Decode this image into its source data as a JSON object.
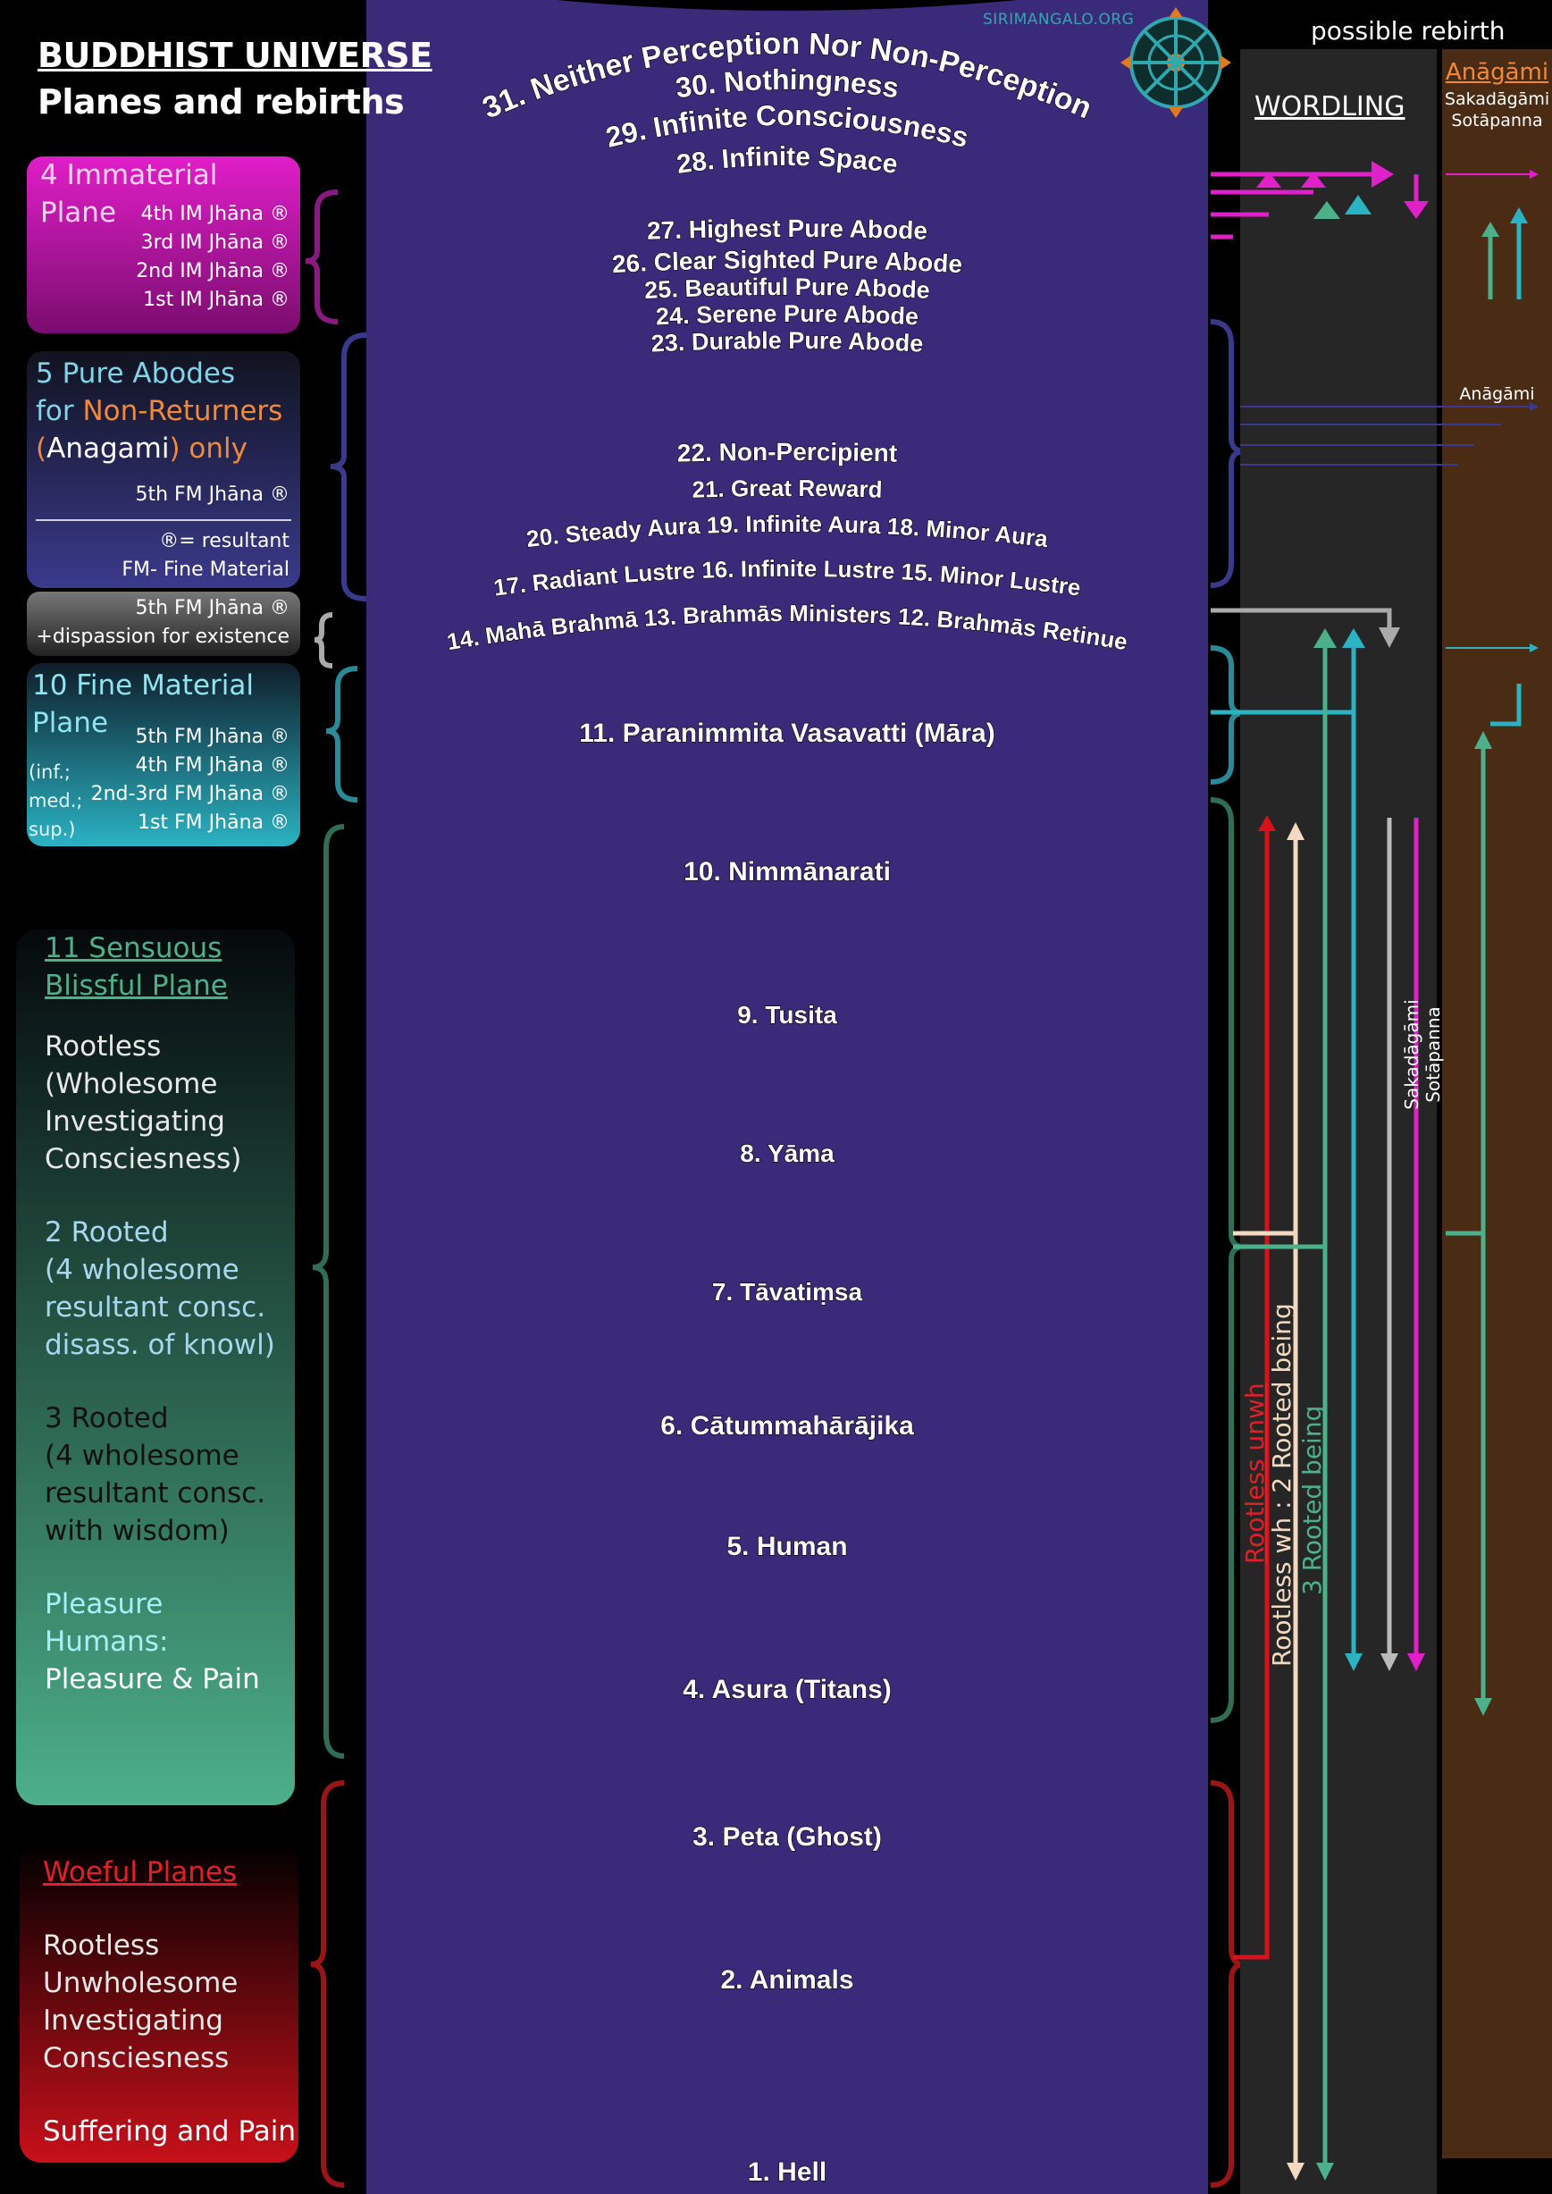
{
  "header": {
    "title": "BUDDHIST UNIVERSE",
    "subtitle": "Planes and rebirths",
    "site": "SIRIMANGALO.ORG"
  },
  "left_panels": {
    "immaterial": {
      "heading_line1": "4 Immaterial",
      "heading_line2": "Plane",
      "jhanas": [
        "4th IM Jhāna ®",
        "3rd IM Jhāna ®",
        "2nd IM Jhāna ®",
        "1st IM Jhāna ®"
      ]
    },
    "pure_abodes": {
      "line1": "5 Pure Abodes",
      "line2_a": "for ",
      "line2_b": "Non-Returners",
      "line3_a": "(",
      "line3_b": "Anagami",
      "line3_c": ") only",
      "jhana": "5th FM Jhāna ®",
      "note1": "®= resultant",
      "note2": "FM- Fine Material"
    },
    "non_percipient": {
      "line1": "5th FM Jhāna ®",
      "line2": "+dispassion for existence"
    },
    "fine_material": {
      "heading_line1": "10 Fine Material",
      "heading_line2": "Plane",
      "jhanas": [
        "5th FM Jhāna ®",
        "4th FM Jhāna ®",
        "2nd-3rd FM Jhāna ®",
        "1st FM Jhāna ®"
      ],
      "side_notes": [
        "(inf.;",
        "med.;",
        "sup.)"
      ]
    },
    "sensuous": {
      "heading_line1": "11 Sensuous",
      "heading_line2": "Blissful Plane",
      "block1": [
        "Rootless",
        "(Wholesome",
        "Investigating",
        "Consciesness)"
      ],
      "block2": [
        "2 Rooted",
        "(4 wholesome",
        "resultant consc.",
        "disass. of knowl)"
      ],
      "block3": [
        "3 Rooted",
        "(4 wholesome",
        "resultant consc.",
        "with wisdom)"
      ],
      "block4": [
        "Pleasure",
        "Humans:",
        "Pleasure & Pain"
      ]
    },
    "woeful": {
      "heading": "Woeful Planes",
      "block1": [
        "Rootless",
        "Unwholesome",
        "Investigating",
        "Consciesness"
      ],
      "block2": "Suffering and Pain"
    }
  },
  "planes": {
    "p31": "31. Neither Perception Nor Non-Perception",
    "p30": "30. Nothingness",
    "p29": "29. Infinite Consciousness",
    "p28": "28. Infinite Space",
    "p27": "27. Highest Pure Abode",
    "p26": "26. Clear Sighted Pure Abode",
    "p25": "25. Beautiful Pure Abode",
    "p24": "24. Serene Pure Abode",
    "p23": "23. Durable Pure Abode",
    "p22": "22. Non-Percipient",
    "p21": "21. Great Reward",
    "p20_18": "20. Steady Aura 19. Infinite Aura 18. Minor Aura",
    "p17_15": "17. Radiant Lustre 16. Infinite Lustre 15. Minor Lustre",
    "p14_12": "14. Mahā Brahmā 13. Brahmās Ministers 12. Brahmās Retinue",
    "p11": "11. Paranimmita Vasavatti (Māra)",
    "p10": "10. Nimmānarati",
    "p9": "9. Tusita",
    "p8": "8. Yāma",
    "p7": "7. Tāvatiṃsa",
    "p6": "6. Cātummahārājika",
    "p5": "5. Human",
    "p4": "4. Asura (Titans)",
    "p3": "3. Peta (Ghost)",
    "p2": "2. Animals",
    "p1": "1. Hell"
  },
  "right": {
    "possible_rebirth": "possible rebirth",
    "worldling": "WORDLING",
    "anagami": "Anāgāmi",
    "sakadagami": "Sakadāgāmi",
    "sotapanna": "Sotāpanna",
    "anagami_mid": "Anāgāmi",
    "vertical_sakadagami": "Sakadāgāmi",
    "vertical_sotapanna": "Sotāpanna",
    "label_rootless_unwh": "Rootless unwh",
    "label_rootless_wh": "Rootless wh : 2 Rooted being",
    "label_3rooted": "3 Rooted being"
  },
  "colors": {
    "immaterial": "#d61cc0",
    "pure_abode": "#3a3a8c",
    "fine_material": "#2ab3c3",
    "sensuous": "#4cb08a",
    "woeful": "#c8101a",
    "anagami_orange": "#f08a3a",
    "worldling_col": "#2a2a2a",
    "noble_col": "#4a2c14"
  }
}
